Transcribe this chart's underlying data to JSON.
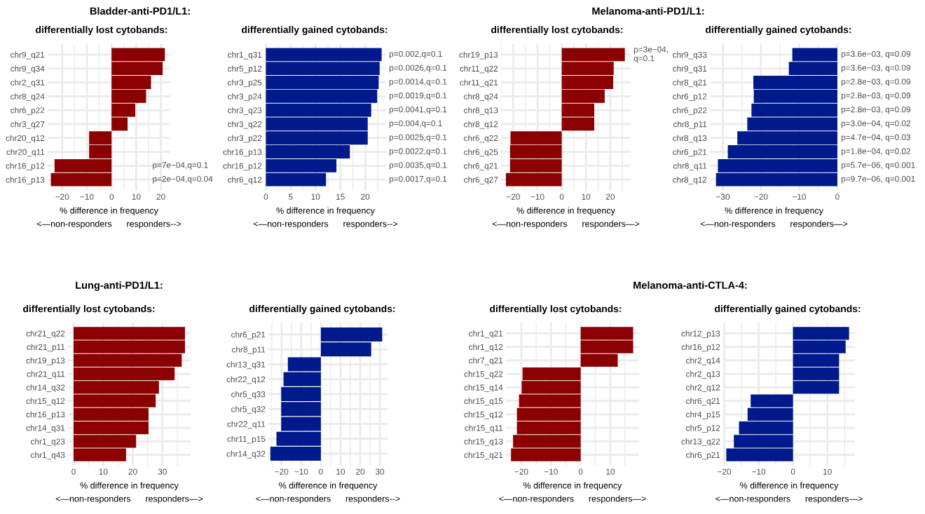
{
  "chart_data": [
    {
      "type": "bar",
      "orientation": "horizontal",
      "title": "Bladder-anti-PD1/L1:",
      "subtitle": "differentially lost cytobands:",
      "xlabel": "% difference in frequency\n<—non-responders      responders-->",
      "categories": [
        "chr9_q21",
        "chr9_q34",
        "chr2_q31",
        "chr8_q24",
        "chr6_p22",
        "chr3_q27",
        "chr20_q12",
        "chr20_q11",
        "chr16_p12",
        "chr16_p13"
      ],
      "values": [
        21.6,
        20.7,
        16,
        14,
        9.6,
        6.5,
        -9.1,
        -9.1,
        -23.1,
        -24.6
      ],
      "color": "#8b0000",
      "xlim": [
        -25.9,
        23.8
      ],
      "xticks": [
        {
          "value": -20,
          "label": "−20"
        },
        {
          "value": -15,
          "label": null
        },
        {
          "value": -10,
          "label": "−10"
        },
        {
          "value": -5,
          "label": null
        },
        0,
        {
          "value": 5,
          "label": null
        },
        10,
        {
          "value": 15,
          "label": null
        },
        20
      ],
      "grid": true,
      "annotations": [
        "p=7e−04,q=0.1",
        "p=2e−04,q=0.04"
      ]
    },
    {
      "type": "bar",
      "orientation": "horizontal",
      "subtitle": "differentially gained cytobands:",
      "xlabel": "% difference in frequency\n<—non-responders      responders-->",
      "categories": [
        "chr1_q31",
        "chr5_p12",
        "chr3_p25",
        "chr3_p24",
        "chr3_q23",
        "chr3_q22",
        "chr3_p22",
        "chr16_p13",
        "chr16_p12",
        "chr6_q12"
      ],
      "values": [
        23.3,
        22.9,
        22.7,
        22.4,
        21.2,
        20.5,
        20.5,
        16.9,
        14.2,
        12.1
      ],
      "color": "#00198b",
      "xlim": [
        -0.2,
        24.2
      ],
      "xticks": [
        0,
        {
          "value": 2.5,
          "label": null
        },
        5,
        {
          "value": 7.5,
          "label": null
        },
        10,
        {
          "value": 12.5,
          "label": null
        },
        15,
        {
          "value": 17.5,
          "label": null
        },
        20,
        {
          "value": 22.5,
          "label": null
        }
      ],
      "grid": true,
      "annotations": [
        "p=0.002,q=0.1",
        "p=0.0026,q=0.1",
        "p=0.0014,q=0.1",
        "p=0.0019,q=0.1",
        "p=0.0041,q=0.1",
        "p=0.004,q=0.1",
        "p=0.0025,q=0.1",
        "p=0.0022,q=0.1",
        "p=0.0035,q=0.1",
        "p=0.0017,q=0.1"
      ]
    },
    {
      "type": "bar",
      "orientation": "horizontal",
      "title": "Melanoma-anti-PD1/L1:",
      "subtitle": "differentially lost cytobands:",
      "xlabel": "% difference in frequency\n<—non-responders      responders—>",
      "categories": [
        "chr19_p13",
        "chr11_q22",
        "chr11_q21",
        "chr8_q24",
        "chr8_q13",
        "chr8_q12",
        "chr6_q22",
        "chr6_q25",
        "chr6_q21",
        "chr6_q27"
      ],
      "values": [
        26.0,
        21.4,
        21.2,
        17.7,
        13.4,
        13.4,
        -21.1,
        -21.3,
        -21.3,
        -23.0
      ],
      "color": "#8b0000",
      "xlim": [
        -25,
        28.4
      ],
      "xticks": [
        {
          "value": -25,
          "label": null
        },
        {
          "value": -20,
          "label": "−20"
        },
        {
          "value": -15,
          "label": null
        },
        {
          "value": -10,
          "label": "−10"
        },
        {
          "value": -5,
          "label": null
        },
        0,
        {
          "value": 5,
          "label": null
        },
        10,
        {
          "value": 15,
          "label": null
        },
        20,
        {
          "value": 25,
          "label": null
        }
      ],
      "grid": true,
      "annotations": [
        "p=3e−04,\nq=0.1"
      ]
    },
    {
      "type": "bar",
      "orientation": "horizontal",
      "subtitle": "differentially gained cytobands:",
      "xlabel": "% difference in frequency\n<—non-responders      responders—>",
      "categories": [
        "chr9_q33",
        "chr9_q31",
        "chr8_q21",
        "chr6_p12",
        "chr6_p22",
        "chr8_p11",
        "chr8_q13",
        "chr6_p21",
        "chr8_q11",
        "chr8_q12"
      ],
      "values": [
        -11.8,
        -12.7,
        -22.0,
        -21.9,
        -22.5,
        -23.6,
        -26.2,
        -28.7,
        -31.3,
        -31.8
      ],
      "color": "#00198b",
      "xlim": [
        -33.4,
        0.2
      ],
      "xticks": [
        {
          "value": -30,
          "label": "−30"
        },
        {
          "value": -25,
          "label": null
        },
        {
          "value": -20,
          "label": "−20"
        },
        {
          "value": -15,
          "label": null
        },
        {
          "value": -10,
          "label": "−10"
        },
        {
          "value": -5,
          "label": null
        },
        0
      ],
      "grid": true,
      "annotations": [
        "p=3.6e−03, q=0.09",
        "p=3.6e−03, q=0.09",
        "p=2.8e−03, q=0.09",
        "p=2.8e−03, q=0.09",
        "p=2.8e−03, q=0.09",
        "p=3.0e−04, q=0.02",
        "p=4.7e−04, q=0.03",
        "p=1.8e−04, q=0.02",
        "p=5.7e−06, q=0.001",
        "p=9.7e−06, q=0.001"
      ]
    },
    {
      "type": "bar",
      "orientation": "horizontal",
      "title": "Lung-anti-PD1/L1:",
      "subtitle": "differentially lost cytobands:",
      "xlabel": "% difference in frequency\n<—non-responders      responders—>",
      "categories": [
        "chr21_q22",
        "chr21_p11",
        "chr19_p13",
        "chr21_q11",
        "chr14_q32",
        "chr15_q12",
        "chr16_p13",
        "chr14_q31",
        "chr1_q23",
        "chr1_q43"
      ],
      "values": [
        37.6,
        37.6,
        36.5,
        34.1,
        28.8,
        27.7,
        25.3,
        25.3,
        21.1,
        17.7
      ],
      "color": "#8b0000",
      "xlim": [
        -1.9,
        39.5
      ],
      "xticks": [
        0,
        {
          "value": 5,
          "label": null
        },
        10,
        {
          "value": 15,
          "label": null
        },
        20,
        {
          "value": 25,
          "label": null
        },
        30,
        {
          "value": 35,
          "label": null
        }
      ],
      "grid": true
    },
    {
      "type": "bar",
      "orientation": "horizontal",
      "subtitle": "differentially gained cytobands:",
      "xlabel": "% difference in frequency\n<—non-responders      responders-->",
      "categories": [
        "chr6_p21",
        "chr8_p11",
        "chr13_q31",
        "chr22_q12",
        "chr5_q33",
        "chr5_q32",
        "chr22_q11",
        "chr11_p15",
        "chr14_q32"
      ],
      "values": [
        31.2,
        25.6,
        -16.8,
        -19.0,
        -20.2,
        -20.2,
        -20.2,
        -22.6,
        -25.7
      ],
      "color": "#00198b",
      "xlim": [
        -26.7,
        33.9
      ],
      "xticks": [
        {
          "value": -25,
          "label": null
        },
        {
          "value": -20,
          "label": "−20"
        },
        {
          "value": -15,
          "label": null
        },
        {
          "value": -10,
          "label": "−10"
        },
        {
          "value": -5,
          "label": null
        },
        0,
        {
          "value": 5,
          "label": null
        },
        10,
        {
          "value": 15,
          "label": null
        },
        20,
        {
          "value": 25,
          "label": null
        },
        30
      ],
      "grid": true
    },
    {
      "type": "bar",
      "orientation": "horizontal",
      "title": "Melanoma-anti-CTLA-4:",
      "subtitle": "differentially lost cytobands:",
      "xlabel": "% difference in frequency\n<—non-responders      responders—>",
      "categories": [
        "chr1_q21",
        "chr1_q12",
        "chr7_q21",
        "chr15_q22",
        "chr15_q14",
        "chr15_q15",
        "chr15_q12",
        "chr15_q11",
        "chr15_q13",
        "chr15_q21"
      ],
      "values": [
        17.7,
        17.7,
        12.5,
        -19.6,
        -19.9,
        -20.8,
        -21.5,
        -21.5,
        -22.8,
        -23.5
      ],
      "color": "#8b0000",
      "xlim": [
        -25.2,
        19.7
      ],
      "xticks": [
        {
          "value": -20,
          "label": "−20"
        },
        {
          "value": -15,
          "label": null
        },
        {
          "value": -10,
          "label": "−10"
        },
        {
          "value": -5,
          "label": null
        },
        0,
        {
          "value": 5,
          "label": null
        },
        10,
        {
          "value": 15,
          "label": null
        }
      ],
      "grid": true
    },
    {
      "type": "bar",
      "orientation": "horizontal",
      "subtitle": "differentially gained cytobands:",
      "xlabel": "% difference in frequency\n<—non-responders      responders—>",
      "categories": [
        "chr12_p13",
        "chr16_p12",
        "chr2_q14",
        "chr2_q13",
        "chr2_q12",
        "chr6_q21",
        "chr4_p15",
        "chr5_p12",
        "chr13_q22",
        "chr6_p21"
      ],
      "values": [
        16.3,
        15.3,
        13.4,
        13.4,
        13.4,
        -12.3,
        -13.2,
        -15.7,
        -17.2,
        -19.4
      ],
      "color": "#00198b",
      "xlim": [
        -20.3,
        18.0
      ],
      "xticks": [
        {
          "value": -20,
          "label": "−20"
        },
        {
          "value": -15,
          "label": null
        },
        {
          "value": -10,
          "label": "−10"
        },
        {
          "value": -5,
          "label": null
        },
        0,
        {
          "value": 5,
          "label": null
        },
        10,
        {
          "value": 15,
          "label": null
        }
      ],
      "grid": true
    }
  ]
}
